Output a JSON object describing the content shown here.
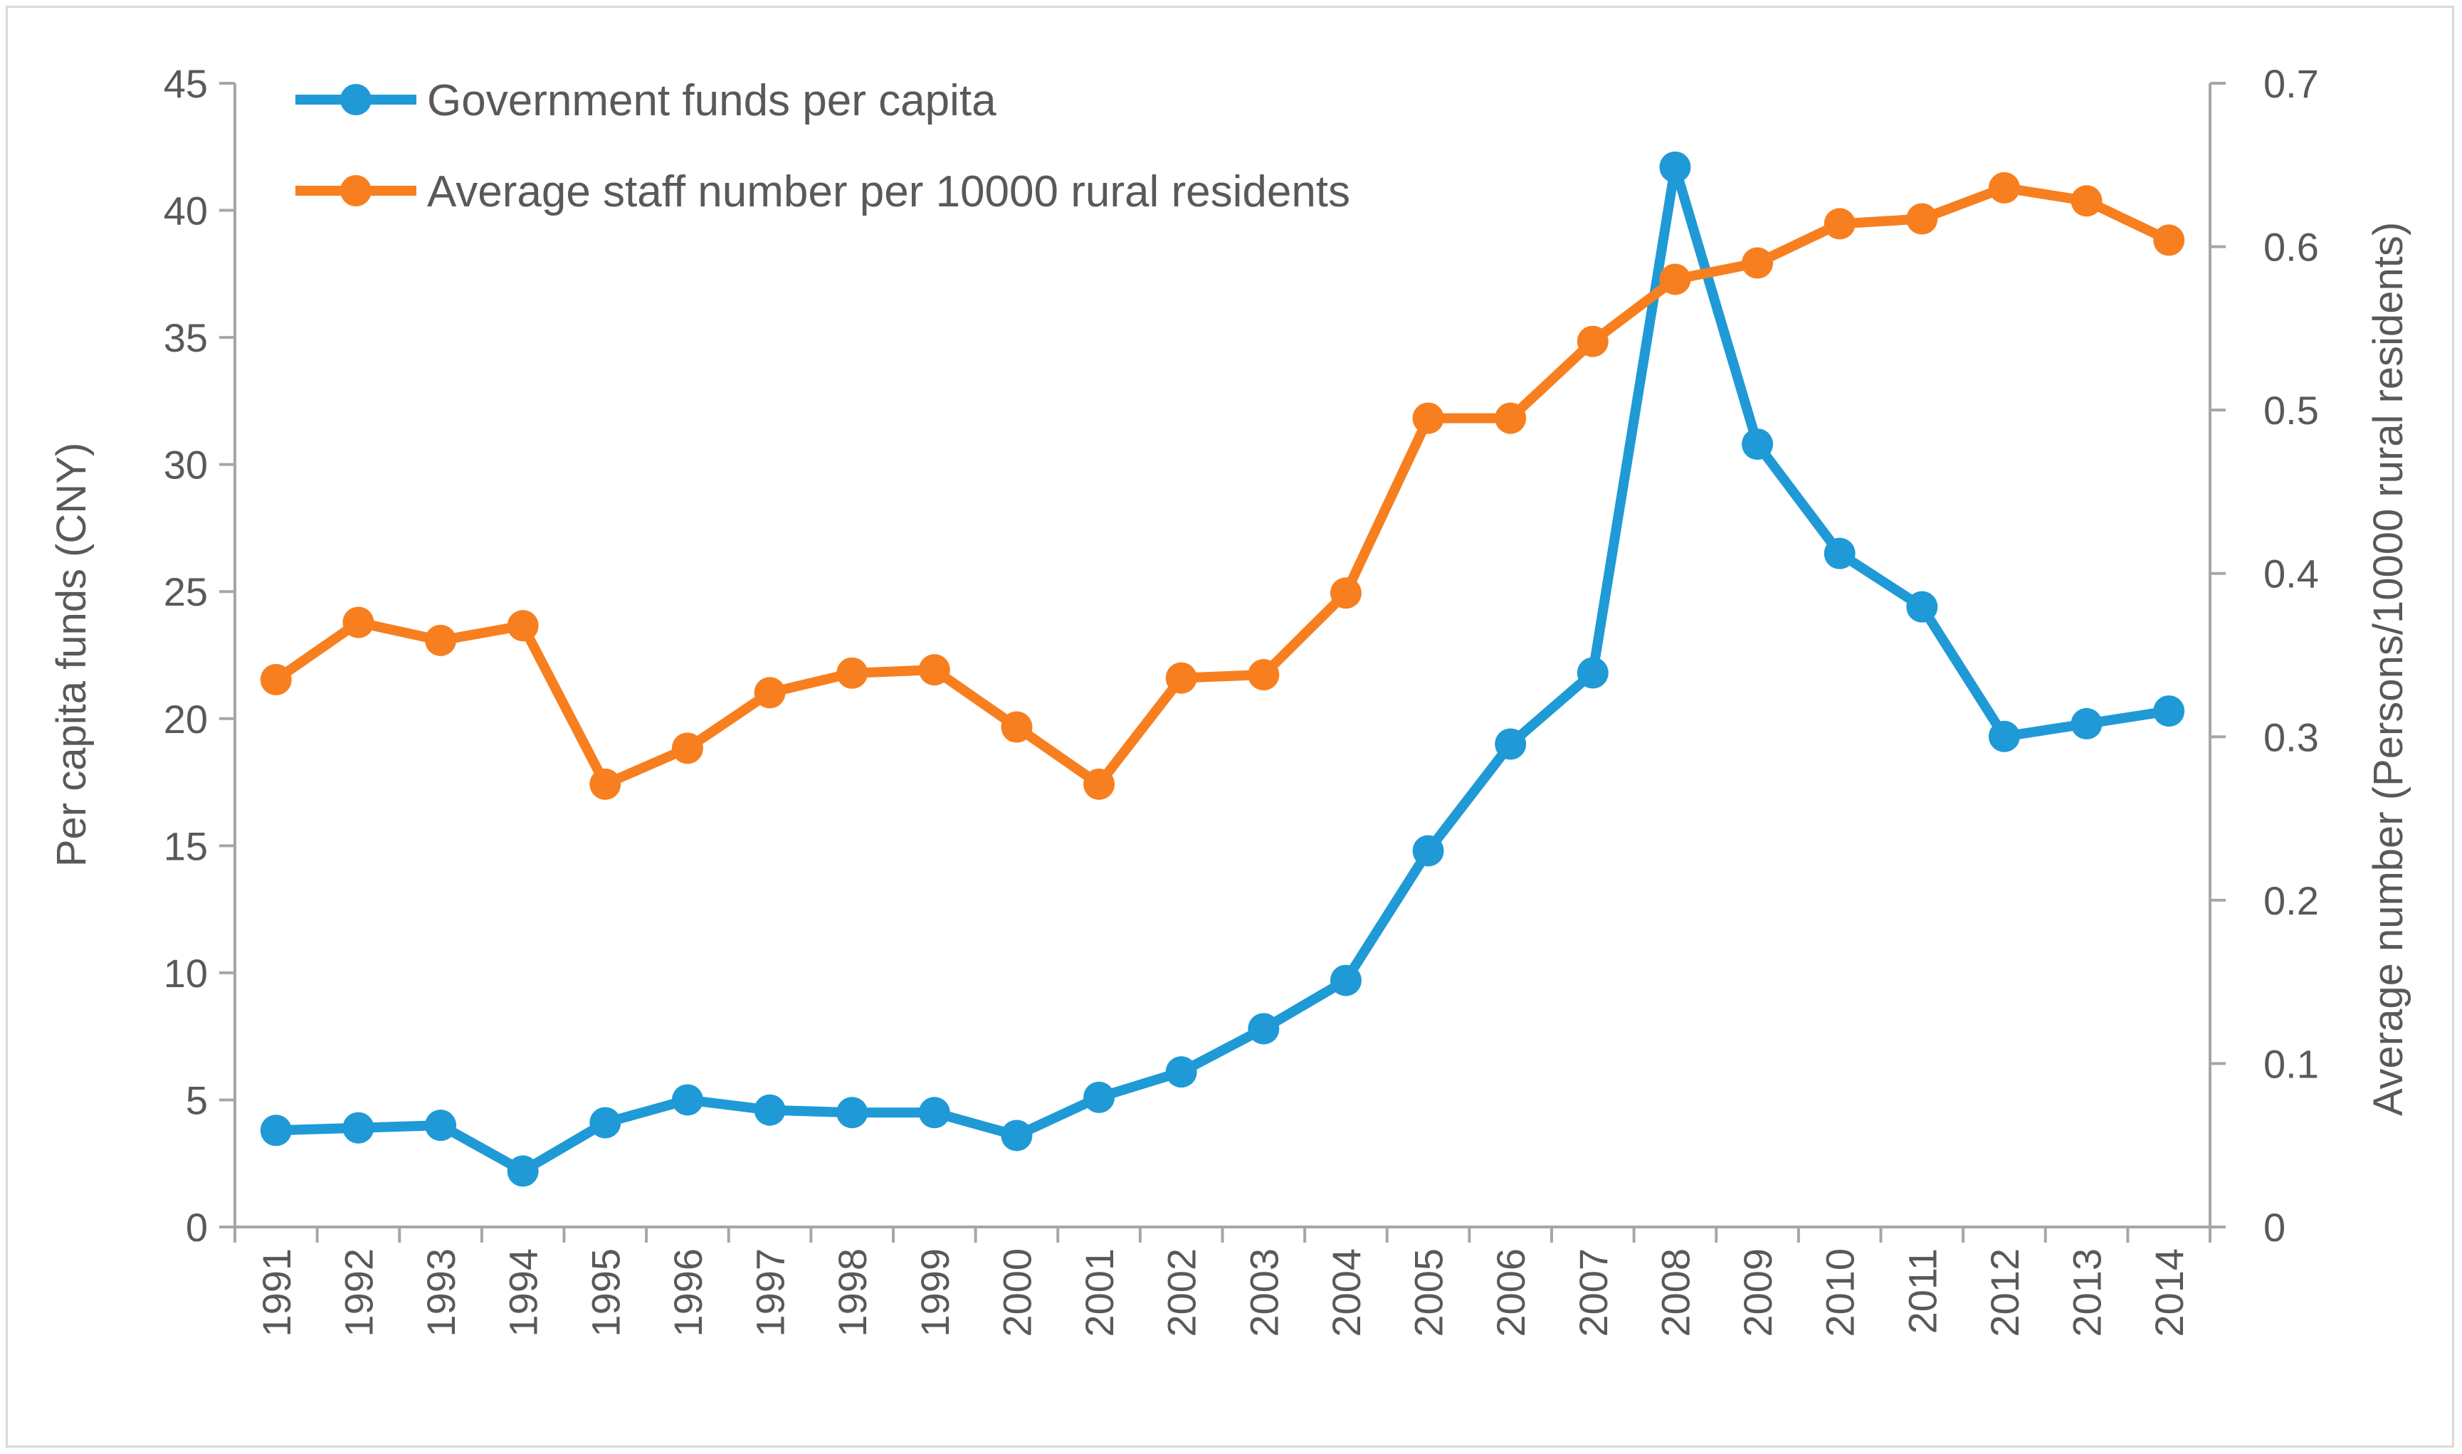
{
  "chart_data": {
    "type": "line",
    "title": "",
    "categories": [
      "1991",
      "1992",
      "1993",
      "1994",
      "1995",
      "1996",
      "1997",
      "1998",
      "1999",
      "2000",
      "2001",
      "2002",
      "2003",
      "2004",
      "2005",
      "2006",
      "2007",
      "2008",
      "2009",
      "2010",
      "2011",
      "2012",
      "2013",
      "2014"
    ],
    "series": [
      {
        "name": "Government funds per capita",
        "axis": "left",
        "color": "#1f9ad6",
        "values": [
          3.8,
          3.9,
          4.0,
          2.2,
          4.1,
          5.0,
          4.6,
          4.5,
          4.5,
          3.6,
          5.1,
          6.1,
          7.8,
          9.7,
          14.8,
          19.0,
          21.8,
          41.7,
          30.8,
          26.5,
          24.4,
          19.3,
          19.8,
          20.3
        ]
      },
      {
        "name": "Average staff number per 10000 rural residents",
        "axis": "right",
        "color": "#f77f1f",
        "values": [
          0.335,
          0.37,
          0.359,
          0.368,
          0.271,
          0.293,
          0.327,
          0.339,
          0.341,
          0.306,
          0.271,
          0.336,
          0.338,
          0.388,
          0.495,
          0.495,
          0.542,
          0.58,
          0.59,
          0.614,
          0.617,
          0.636,
          0.628,
          0.604
        ]
      }
    ],
    "ylabel": "Per capita funds (CNY)",
    "ylim": [
      0,
      45
    ],
    "yticks": [
      "0",
      "5",
      "10",
      "15",
      "20",
      "25",
      "30",
      "35",
      "40",
      "45"
    ],
    "y2label": "Average number (Persons/10000 rural residents)",
    "y2lim": [
      0,
      0.7
    ],
    "y2ticks": [
      "0",
      "0.1",
      "0.2",
      "0.3",
      "0.4",
      "0.5",
      "0.6",
      "0.7"
    ],
    "xlabel": "",
    "legend_position": "top-left",
    "grid": false
  }
}
